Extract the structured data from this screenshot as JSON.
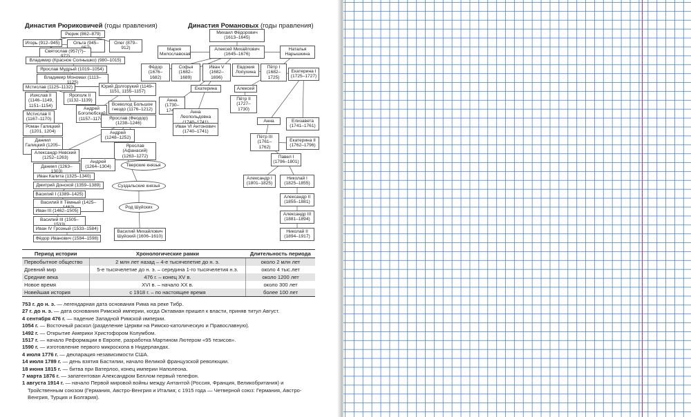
{
  "rurik": {
    "title_bold": "Династия Рюриковичей",
    "title_rest": "(годы правления)",
    "nodes": [
      "Рюрик (862–879)",
      "Игорь (912–945)",
      "Ольга (945–957)",
      "Олег (879–912)",
      "Святослав (957(?)– 972)",
      "Владимир (Красное Солнышко) (980–1015)",
      "Ярослав Мудрый (1019–1054)",
      "Владимир Мономах (1113–1125)",
      "Мстислав (1125–1132)",
      "Изяслав II (1146–1149, 1151–1154)",
      "Ярополк II (1132–1139)",
      "Юрий Долгорукий (1149–1151, 1155–1157)",
      "Андрей Боголюбский (1157–1174)",
      "Всеволод Большое гнездо (1176–1212)",
      "Мстислав II (1167–1170)",
      "Ярослав (Феодор) (1238–1246)",
      "Роман Галицкий (1201, 1204)",
      "Андрей (1248–1252)",
      "Даниил Галицкий (1205–1264)",
      "Ярослав (Афанасий) (1263–1272)",
      "Александр Невский (1252–1263)",
      "Тверские князья",
      "Андрей (1264–1304)",
      "Даниил (1263–1303)",
      "Иван Калита (1325–1340)",
      "Суздальские князья",
      "Дмитрий Донской (1359–1389)",
      "Василий I (1389–1425)",
      "Василий II Тёмный (1425–1462)",
      "Род Шуйских",
      "Иван III (1462–1505)",
      "Василий III (1505–1533)",
      "Иван IV Грозный (1533–1584)",
      "Василий Михайлович Шуйский (1606–1610)",
      "Фёдор Иванович (1584–1598)"
    ]
  },
  "romanov": {
    "title_bold": "Династия Романовых",
    "title_rest": "(годы правления)",
    "nodes": [
      "Михаил Фёдорович (1613–1645)",
      "Мария Милославская",
      "Алексей Михайлович (1645–1676)",
      "Наталья Нарышкина",
      "Фёдор (1676–1682)",
      "Софья (1682–1689)",
      "Иван V (1682–1696)",
      "Евдокия Лопухина",
      "Пётр I (1682–1725)",
      "Екатерина I (1725–1727)",
      "Екатерина",
      "Алексей",
      "Анна (1730–1740)",
      "Пётр II (1727–1730)",
      "Анна Леопольдовна (1740–1741)",
      "Иван VI Антонович (1740–1741)",
      "Анна",
      "Елизавета (1741–1761)",
      "Пётр III (1761–1762)",
      "Екатерина II (1762–1796)",
      "Павел I (1796–1801)",
      "Александр I (1801–1825)",
      "Николай I (1825–1855)",
      "Александр II (1855–1881)",
      "Александр III (1881–1894)",
      "Николай II (1894–1917)"
    ]
  },
  "table": {
    "headers": [
      "Период истории",
      "Хронологические рамки",
      "Длительность периода"
    ],
    "rows": [
      [
        "Первобытное общество",
        "2 млн лет назад – 4-е тысячелетие до н. э.",
        "около 2 млн лет"
      ],
      [
        "Древний мир",
        "5-е тысячелетие до н. э. – середина 1-го тысячелетия н.э.",
        "около 4 тыс.лет"
      ],
      [
        "Средние века",
        "476 г. – конец XV в.",
        "около 1200 лет"
      ],
      [
        "Новое время",
        "XVI в. – начало XX в.",
        "около 300 лет"
      ],
      [
        "Новейшая история",
        "с 1918 г. – по настоящее время",
        "более 100 лет"
      ]
    ]
  },
  "events": [
    {
      "date": "753 г. до н. э.",
      "text": "— легендарная дата основания Рима на реке Тибр."
    },
    {
      "date": "27 г. до н. э.",
      "text": "— дата основания Римской империи, когда Октавиан пришел к власти, приняв титул Август."
    },
    {
      "date": "4 сентября 476 г.",
      "text": "— падение Западной Римской империи."
    },
    {
      "date": "1054 г.",
      "text": "— Восточный раскол (разделение Церкви на Римско-католическую и Православную)."
    },
    {
      "date": "1492 г.",
      "text": "— Открытие Америки Христофором Колумбом."
    },
    {
      "date": "1517 г.",
      "text": "— начало Реформации в Европе, разработка Мартином Лютером «95 тезисов»."
    },
    {
      "date": "1590 г.",
      "text": "— изготовление первого микроскопа в Нидерландах."
    },
    {
      "date": "4 июля 1776 г.",
      "text": "— декларация независимости США."
    },
    {
      "date": "14 июля 1789 г.",
      "text": "— день взятия Бастилии, начало Великой французской революции."
    },
    {
      "date": "18 июня 1815 г.",
      "text": "— битва при Ватерлоо, конец империи Наполеона."
    },
    {
      "date": "7 марта 1876 г.",
      "text": "— запатентован Александром Беллом первый телефон."
    },
    {
      "date": "1 августа 1914 г.",
      "text": "— начало Первой мировой войны между Антантой (Россия, Франция, Великобритания) и Тройственным союзом (Германия, Австро-Венгрия и Италия; с 1915 года — Четверной союз: Германия, Австро-Венгрия, Турция и Болгария)."
    }
  ]
}
